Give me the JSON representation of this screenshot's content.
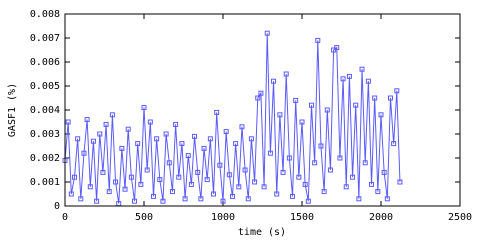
{
  "chart_data": {
    "type": "line",
    "xlabel": "time (s)",
    "ylabel": "GASF1 (%)",
    "x": [
      0,
      20,
      40,
      60,
      80,
      100,
      120,
      140,
      160,
      180,
      200,
      220,
      240,
      260,
      280,
      300,
      320,
      340,
      360,
      380,
      400,
      420,
      440,
      460,
      480,
      500,
      520,
      540,
      560,
      580,
      600,
      620,
      640,
      660,
      680,
      700,
      720,
      740,
      760,
      780,
      800,
      820,
      840,
      860,
      880,
      900,
      920,
      940,
      960,
      980,
      1000,
      1020,
      1040,
      1060,
      1080,
      1100,
      1120,
      1140,
      1160,
      1180,
      1200,
      1220,
      1240,
      1260,
      1280,
      1300,
      1320,
      1340,
      1360,
      1380,
      1400,
      1420,
      1440,
      1460,
      1480,
      1500,
      1520,
      1540,
      1560,
      1580,
      1600,
      1620,
      1640,
      1660,
      1680,
      1700,
      1720,
      1740,
      1760,
      1780,
      1800,
      1820,
      1840,
      1860,
      1880,
      1900,
      1920,
      1940,
      1960,
      1980,
      2000,
      2020,
      2040,
      2060,
      2080,
      2100,
      2120
    ],
    "series": [
      {
        "color": "#5b5bff",
        "values": [
          0.0019,
          0.0035,
          0.0005,
          0.0012,
          0.0028,
          0.0003,
          0.0022,
          0.0036,
          0.0008,
          0.0027,
          0.0002,
          0.003,
          0.0014,
          0.0034,
          0.0006,
          0.0038,
          0.001,
          0.0001,
          0.0024,
          0.0007,
          0.0032,
          0.0012,
          0.0002,
          0.0026,
          0.0009,
          0.0041,
          0.0015,
          0.0035,
          0.0004,
          0.0028,
          0.0011,
          0.0002,
          0.003,
          0.0018,
          0.0006,
          0.0034,
          0.0012,
          0.0026,
          0.0003,
          0.0021,
          0.0009,
          0.0029,
          0.0014,
          0.0003,
          0.0024,
          0.0011,
          0.0028,
          0.0005,
          0.0039,
          0.0017,
          0.0002,
          0.0031,
          0.0013,
          0.0004,
          0.0026,
          0.0008,
          0.0033,
          0.0015,
          0.0003,
          0.0028,
          0.001,
          0.0045,
          0.0047,
          0.0008,
          0.0072,
          0.0022,
          0.0052,
          0.0005,
          0.0038,
          0.0014,
          0.0055,
          0.002,
          0.0004,
          0.0044,
          0.0012,
          0.0035,
          0.0009,
          0.0002,
          0.0042,
          0.0018,
          0.0069,
          0.0025,
          0.0006,
          0.004,
          0.0015,
          0.0065,
          0.0066,
          0.002,
          0.0053,
          0.0008,
          0.0054,
          0.0012,
          0.0042,
          0.0003,
          0.0057,
          0.0018,
          0.0052,
          0.0009,
          0.0045,
          0.0006,
          0.0038,
          0.0014,
          0.0003,
          0.0045,
          0.0026,
          0.0048,
          0.001
        ]
      }
    ],
    "xlim": [
      0,
      2500
    ],
    "xticks": [
      0,
      500,
      1000,
      1500,
      2000,
      2500
    ],
    "ylim": [
      0,
      0.008
    ],
    "yticks": [
      0,
      0.001,
      0.002,
      0.003,
      0.004,
      0.005,
      0.006,
      0.007,
      0.008
    ],
    "grid": false,
    "markers": "square"
  }
}
